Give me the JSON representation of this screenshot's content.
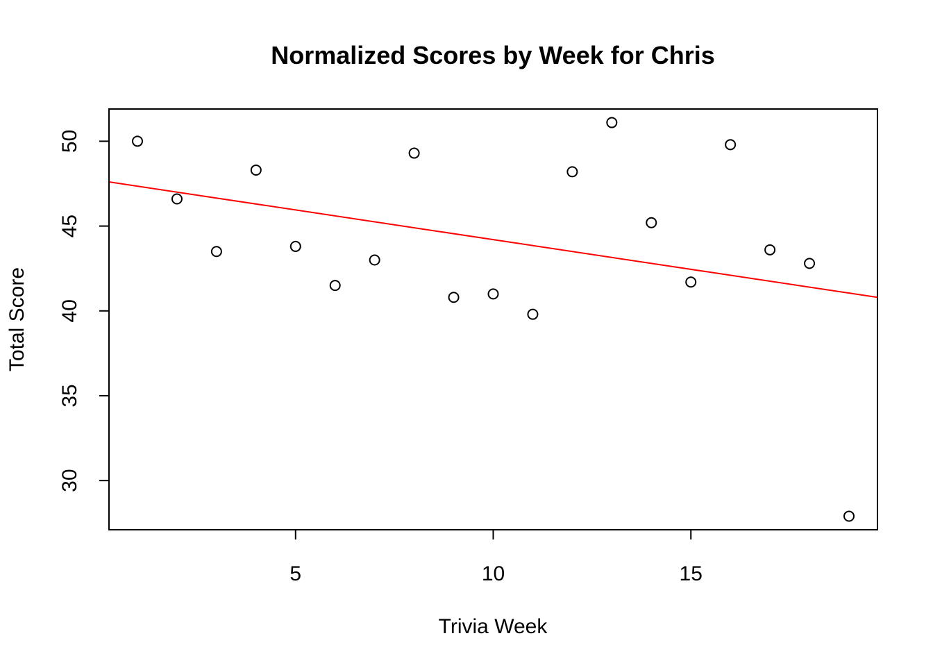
{
  "chart_data": {
    "type": "scatter",
    "title": "Normalized Scores by Week for Chris",
    "xlabel": "Trivia Week",
    "ylabel": "Total Score",
    "xlim": [
      0.28,
      19.72
    ],
    "ylim": [
      27.1,
      51.9
    ],
    "xticks": [
      5,
      10,
      15
    ],
    "yticks": [
      30,
      35,
      40,
      45,
      50
    ],
    "grid": false,
    "legend": "none",
    "points_color": "#000000",
    "series": [
      {
        "x": [
          1,
          2,
          3,
          4,
          5,
          6,
          7,
          8,
          9,
          10,
          11,
          12,
          13,
          14,
          15,
          16,
          17,
          18,
          19
        ],
        "values": [
          50.0,
          46.6,
          43.5,
          48.3,
          43.8,
          41.5,
          43.0,
          49.3,
          40.8,
          41.0,
          39.8,
          48.2,
          51.1,
          45.2,
          41.7,
          49.8,
          43.6,
          42.8,
          27.9
        ]
      }
    ],
    "trendline": {
      "color": "#ff0000",
      "intercept": 47.7,
      "slope": -0.35
    }
  }
}
